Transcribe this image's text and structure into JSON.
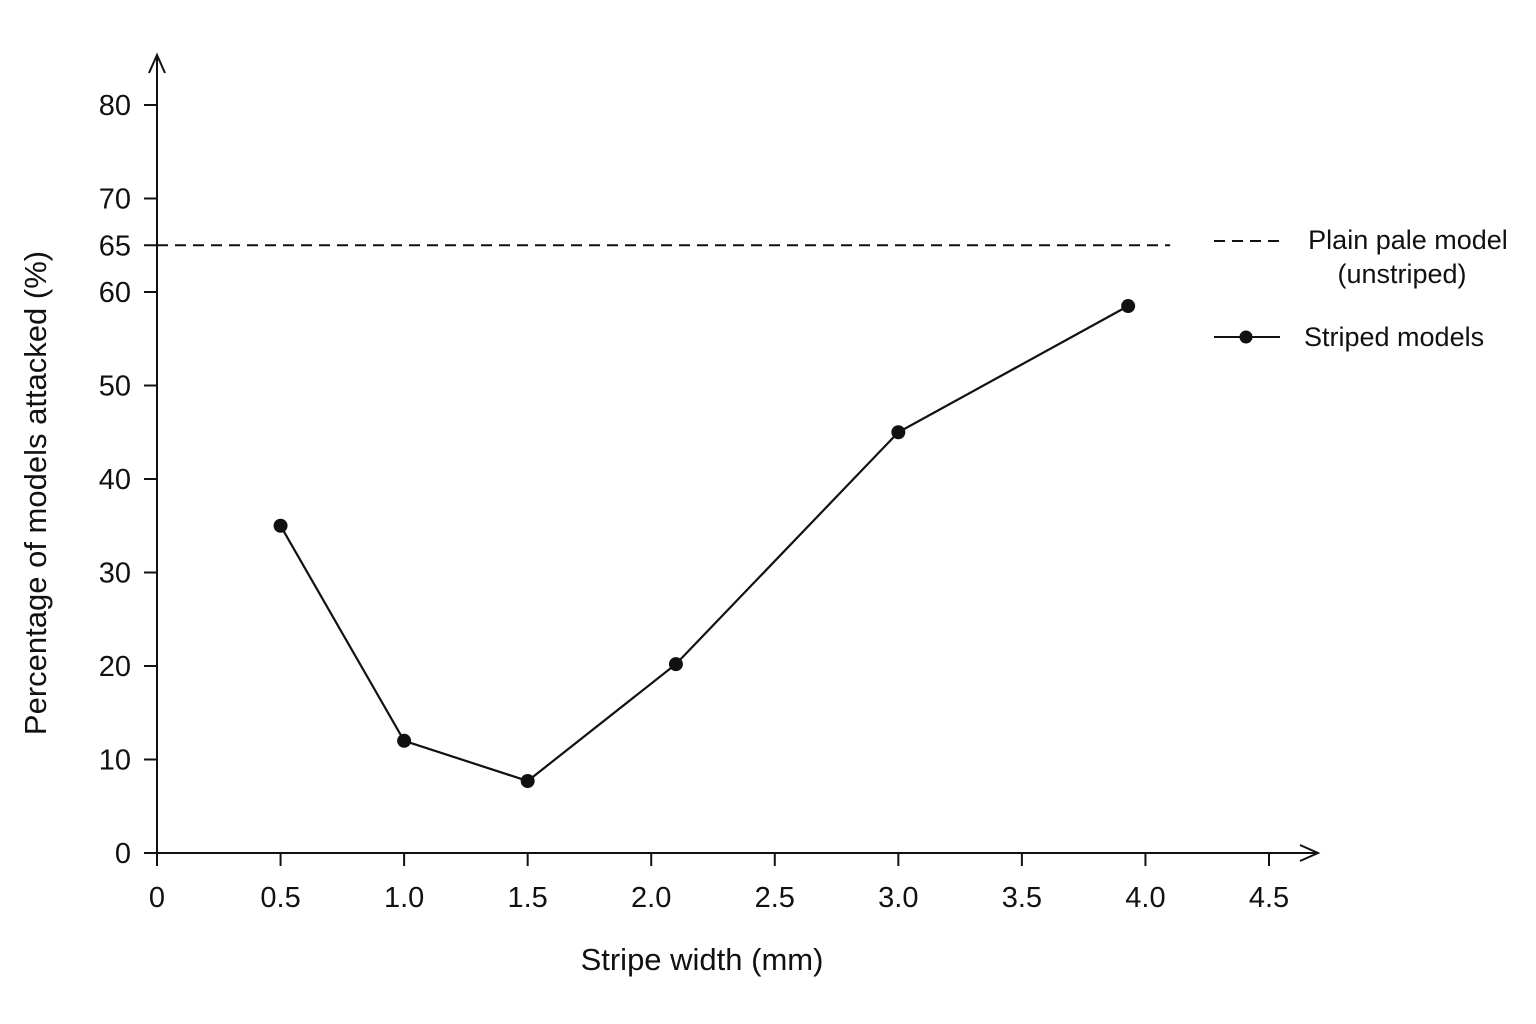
{
  "chart_data": {
    "type": "line",
    "xlabel": "Stripe width (mm)",
    "ylabel": "Percentage of models attacked (%)",
    "xlim": [
      0,
      4.5
    ],
    "ylim": [
      0,
      80
    ],
    "x_ticks": [
      "0",
      "0.5",
      "1.0",
      "1.5",
      "2.0",
      "2.5",
      "3.0",
      "3.5",
      "4.0",
      "4.5"
    ],
    "x_tick_values": [
      0,
      0.5,
      1.0,
      1.5,
      2.0,
      2.5,
      3.0,
      3.5,
      4.0,
      4.5
    ],
    "y_ticks": [
      "0",
      "10",
      "20",
      "30",
      "40",
      "50",
      "60",
      "65",
      "70",
      "80"
    ],
    "y_tick_values": [
      0,
      10,
      20,
      30,
      40,
      50,
      60,
      65,
      70,
      80
    ],
    "grid": false,
    "legend_position": "right",
    "series": [
      {
        "name": "Striped models",
        "style": "solid-with-markers",
        "color": "#111111",
        "x": [
          0.5,
          1.0,
          1.5,
          2.1,
          3.0,
          3.93
        ],
        "y": [
          35,
          12,
          7.7,
          20.2,
          45,
          58.5
        ]
      }
    ],
    "reference_lines": [
      {
        "name": "Plain pale model (unstriped)",
        "name_lines": [
          "Plain pale model",
          "(unstriped)"
        ],
        "style": "dashed",
        "color": "#111111",
        "y": 65,
        "x_end": 4.1
      }
    ]
  }
}
